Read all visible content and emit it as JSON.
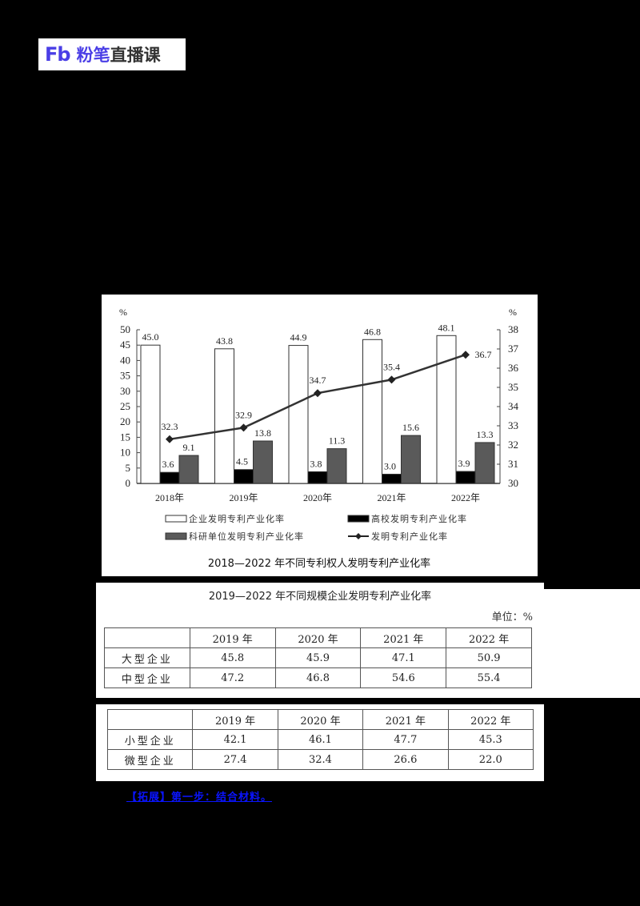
{
  "logo": {
    "mark": "Fb",
    "brand": "粉笔",
    "sub": "直播课"
  },
  "chart_data": {
    "type": "bar",
    "title": "2018—2022 年不同专利权人发明专利产业化率",
    "categories": [
      "2018年",
      "2019年",
      "2020年",
      "2021年",
      "2022年"
    ],
    "left_axis": {
      "unit": "%",
      "ylim": [
        0,
        50
      ],
      "ticks": [
        0,
        5,
        10,
        15,
        20,
        25,
        30,
        35,
        40,
        45,
        50
      ]
    },
    "right_axis": {
      "unit": "%",
      "ylim": [
        30,
        38
      ],
      "ticks": [
        30,
        31,
        32,
        33,
        34,
        35,
        36,
        37,
        38
      ]
    },
    "series": [
      {
        "name": "企业发明专利产业化率",
        "type": "bar",
        "axis": "left",
        "color": "#ffffff",
        "values": [
          45.0,
          43.8,
          44.9,
          46.8,
          48.1
        ]
      },
      {
        "name": "高校发明专利产业化率",
        "type": "bar",
        "axis": "left",
        "color": "#000000",
        "values": [
          3.6,
          4.5,
          3.8,
          3.0,
          3.9
        ]
      },
      {
        "name": "科研单位发明专利产业化率",
        "type": "bar",
        "axis": "left",
        "color": "#5a5a5a",
        "values": [
          9.1,
          13.8,
          11.3,
          15.6,
          13.3
        ]
      },
      {
        "name": "发明专利产业化率",
        "type": "line",
        "axis": "right",
        "color": "#333333",
        "values": [
          32.3,
          32.9,
          34.7,
          35.4,
          36.7
        ]
      }
    ],
    "legend_position": "bottom",
    "grid": false
  },
  "table1": {
    "title": "2019—2022 年不同规模企业发明专利产业化率",
    "unit": "单位：%",
    "headers": [
      "",
      "2019 年",
      "2020 年",
      "2021 年",
      "2022 年"
    ],
    "rows": [
      {
        "label": "大型企业",
        "values": [
          "45.8",
          "45.9",
          "47.1",
          "50.9"
        ]
      },
      {
        "label": "中型企业",
        "values": [
          "47.2",
          "46.8",
          "54.6",
          "55.4"
        ]
      }
    ]
  },
  "table2": {
    "headers": [
      "",
      "2019 年",
      "2020 年",
      "2021 年",
      "2022 年"
    ],
    "rows": [
      {
        "label": "小型企业",
        "values": [
          "42.1",
          "46.1",
          "47.7",
          "45.3"
        ]
      },
      {
        "label": "微型企业",
        "values": [
          "27.4",
          "32.4",
          "26.6",
          "22.0"
        ]
      }
    ]
  },
  "note": "【拓展】第一步：结合材料。"
}
